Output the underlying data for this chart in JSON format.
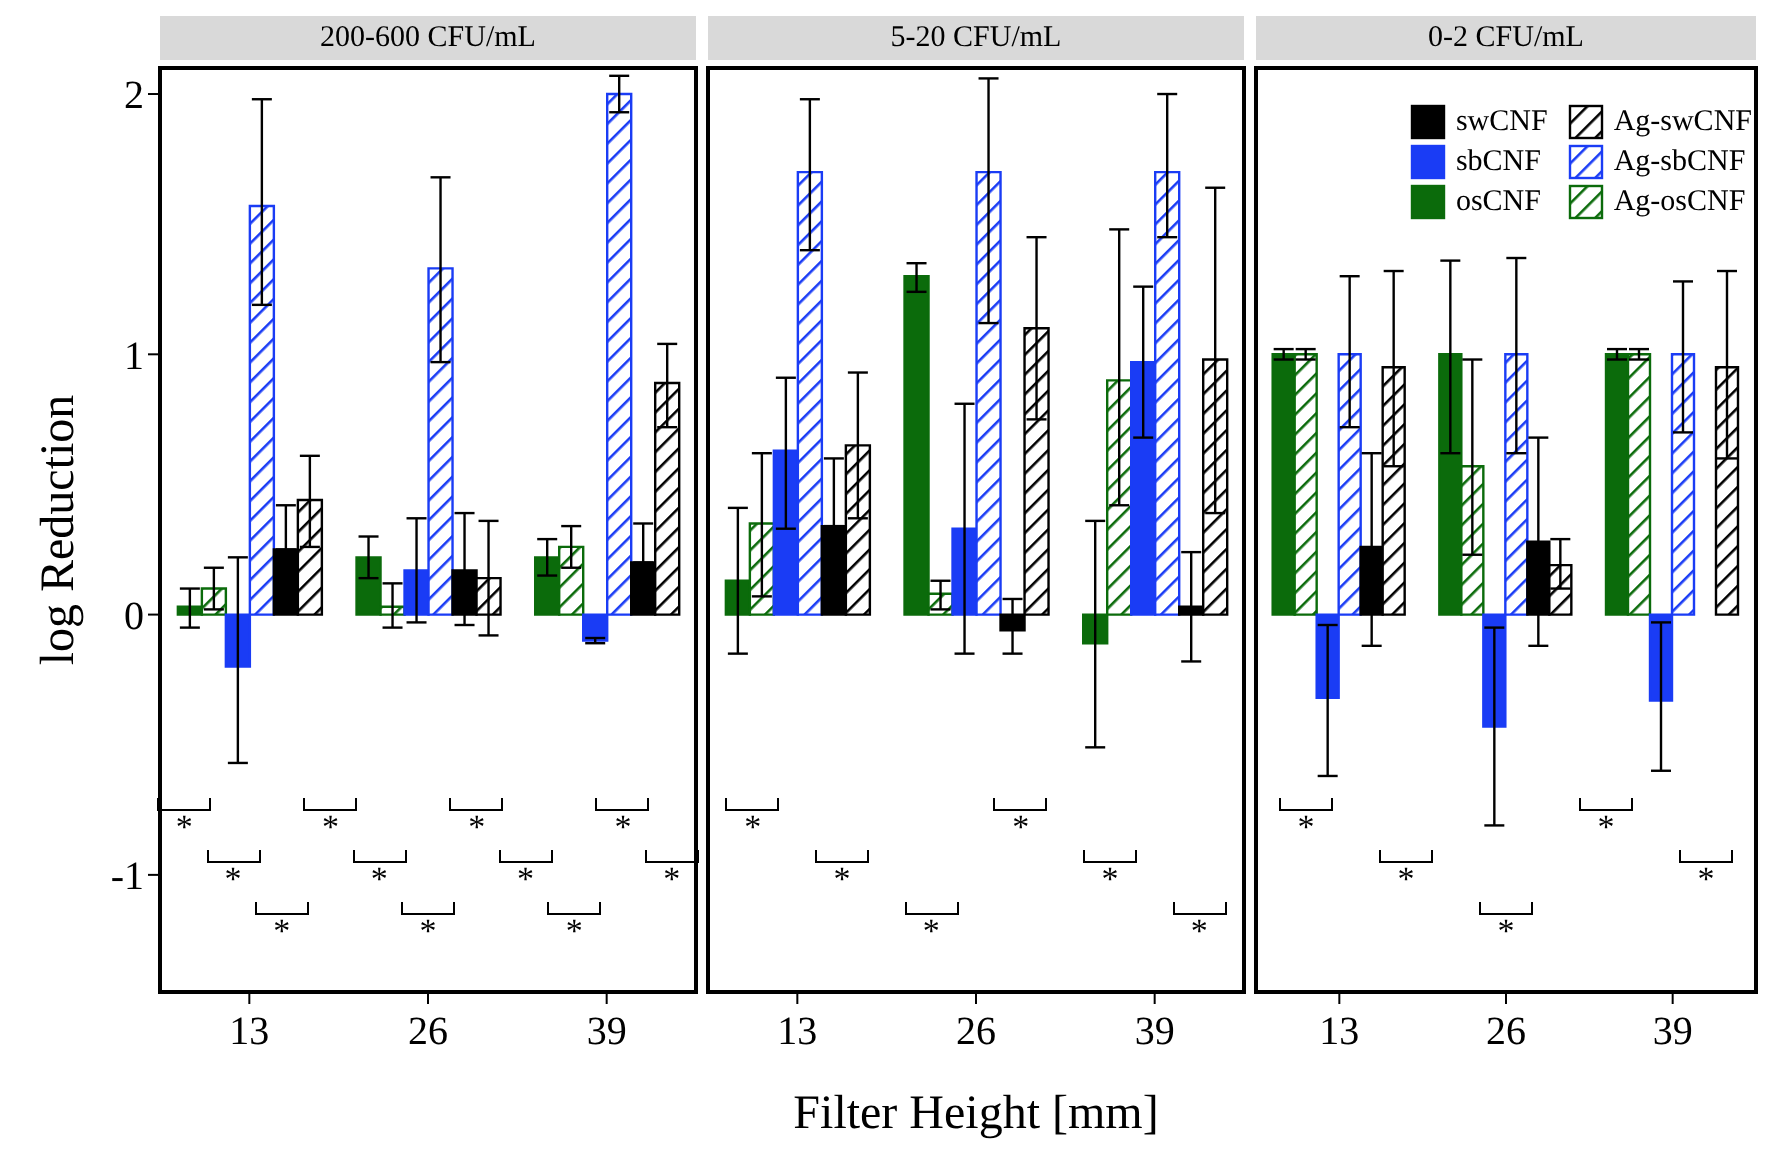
{
  "chart_data": [
    {
      "type": "bar",
      "title": "200-600 CFU/mL",
      "ylabel": "log Reduction",
      "categories": [
        "13",
        "26",
        "39"
      ],
      "ylim": [
        -1.45,
        2.1
      ],
      "yticks": [
        -1,
        0,
        1,
        2
      ],
      "legend": false,
      "series": [
        {
          "color": "#0b6b0b",
          "values": [
            0.03,
            0.22,
            0.22
          ],
          "errors": [
            [
              -0.05,
              0.1
            ],
            [
              0.14,
              0.3
            ],
            [
              0.15,
              0.29
            ]
          ]
        },
        {
          "color": "#0b6b0b",
          "values": [
            0.1,
            0.03,
            0.26
          ],
          "errors": [
            [
              0.02,
              0.18
            ],
            [
              -0.05,
              0.12
            ],
            [
              0.18,
              0.34
            ]
          ]
        },
        {
          "color": "#1a3cf5",
          "values": [
            -0.2,
            0.17,
            -0.1
          ],
          "errors": [
            [
              -0.57,
              0.22
            ],
            [
              -0.03,
              0.37
            ],
            [
              -0.11,
              -0.09
            ]
          ]
        },
        {
          "color": "#1a3cf5",
          "values": [
            1.57,
            1.33,
            2.0
          ],
          "errors": [
            [
              1.19,
              1.98
            ],
            [
              0.97,
              1.68
            ],
            [
              1.93,
              2.07
            ]
          ]
        },
        {
          "color": "#000000",
          "values": [
            0.25,
            0.17,
            0.2
          ],
          "errors": [
            [
              0.25,
              0.42
            ],
            [
              -0.04,
              0.39
            ],
            [
              0.2,
              0.35
            ]
          ]
        },
        {
          "color": "#000000",
          "values": [
            0.44,
            0.14,
            0.89
          ],
          "errors": [
            [
              0.26,
              0.61
            ],
            [
              -0.08,
              0.36
            ],
            [
              0.72,
              1.04
            ]
          ]
        }
      ],
      "annotations": [
        "*",
        "*",
        "*",
        "*",
        "*",
        "*",
        "*",
        "*",
        "*",
        "*",
        "*"
      ]
    },
    {
      "type": "bar",
      "title": "5-20 CFU/mL",
      "xlabel": "Filter Height [mm]",
      "categories": [
        "13",
        "26",
        "39"
      ],
      "ylim": [
        -1.45,
        2.1
      ],
      "yticks": [
        -1,
        0,
        1,
        2
      ],
      "tick_labels": "x",
      "legend": false,
      "series": [
        {
          "color": "#0b6b0b",
          "values": [
            0.13,
            1.3,
            -0.11
          ],
          "errors": [
            [
              -0.15,
              0.41
            ],
            [
              1.24,
              1.35
            ],
            [
              -0.51,
              0.36
            ]
          ]
        },
        {
          "color": "#0b6b0b",
          "values": [
            0.35,
            0.08,
            0.9
          ],
          "errors": [
            [
              0.07,
              0.62
            ],
            [
              0.02,
              0.13
            ],
            [
              0.42,
              1.48
            ]
          ]
        },
        {
          "color": "#1a3cf5",
          "values": [
            0.63,
            0.33,
            0.97
          ],
          "errors": [
            [
              0.33,
              0.91
            ],
            [
              -0.15,
              0.81
            ],
            [
              0.68,
              1.26
            ]
          ]
        },
        {
          "color": "#1a3cf5",
          "values": [
            1.7,
            1.7,
            1.7
          ],
          "errors": [
            [
              1.4,
              1.98
            ],
            [
              1.12,
              2.06
            ],
            [
              1.45,
              2.0
            ]
          ]
        },
        {
          "color": "#000000",
          "values": [
            0.34,
            -0.06,
            0.03
          ],
          "errors": [
            [
              0.34,
              0.6
            ],
            [
              -0.15,
              0.06
            ],
            [
              -0.18,
              0.24
            ]
          ]
        },
        {
          "color": "#000000",
          "values": [
            0.65,
            1.1,
            0.98
          ],
          "errors": [
            [
              0.37,
              0.93
            ],
            [
              0.75,
              1.45
            ],
            [
              0.39,
              1.64
            ]
          ]
        }
      ],
      "annotations": [
        "*",
        "*",
        "*",
        "*",
        "*",
        "*"
      ]
    },
    {
      "type": "bar",
      "title": "0-2 CFU/mL",
      "categories": [
        "13",
        "26",
        "39"
      ],
      "ylim": [
        -1.45,
        2.1
      ],
      "yticks": [
        -1,
        0,
        1,
        2
      ],
      "tick_labels": "x",
      "legend": "top right",
      "series": [
        {
          "name": "osCNF",
          "color": "#0b6b0b",
          "values": [
            1.0,
            1.0,
            1.0
          ],
          "errors": [
            [
              0.98,
              1.02
            ],
            [
              0.62,
              1.36
            ],
            [
              0.98,
              1.02
            ]
          ]
        },
        {
          "name": "Ag-osCNF",
          "color": "#0b6b0b",
          "values": [
            1.0,
            0.57,
            1.0
          ],
          "errors": [
            [
              0.98,
              1.02
            ],
            [
              0.23,
              0.98
            ],
            [
              0.98,
              1.02
            ]
          ]
        },
        {
          "name": "sbCNF",
          "color": "#1a3cf5",
          "values": [
            -0.32,
            -0.43,
            -0.33
          ],
          "errors": [
            [
              -0.62,
              -0.04
            ],
            [
              -0.81,
              -0.05
            ],
            [
              -0.6,
              -0.03
            ]
          ]
        },
        {
          "name": "Ag-sbCNF",
          "color": "#1a3cf5",
          "values": [
            1.0,
            1.0,
            1.0
          ],
          "errors": [
            [
              0.72,
              1.3
            ],
            [
              0.62,
              1.37
            ],
            [
              0.7,
              1.28
            ]
          ]
        },
        {
          "name": "swCNF",
          "color": "#000000",
          "values": [
            0.26,
            0.28,
            0
          ],
          "errors": [
            [
              -0.12,
              0.62
            ],
            [
              -0.12,
              0.68
            ],
            null
          ]
        },
        {
          "name": "Ag-swCNF",
          "color": "#000000",
          "values": [
            0.95,
            0.19,
            0.95
          ],
          "errors": [
            [
              0.57,
              1.32
            ],
            [
              0.1,
              0.29
            ],
            [
              0.6,
              1.32
            ]
          ]
        }
      ],
      "annotations": [
        "*",
        "*",
        "*",
        "*",
        "*"
      ]
    }
  ]
}
